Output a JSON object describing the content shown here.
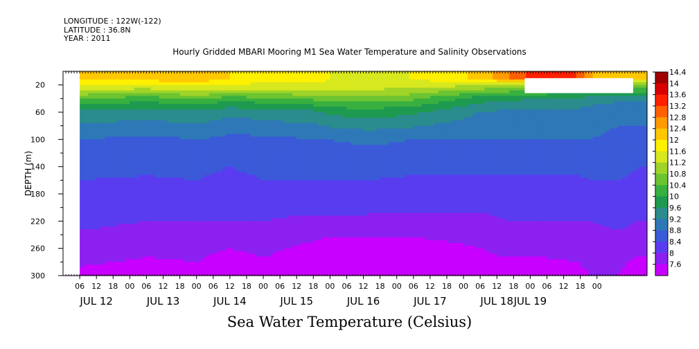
{
  "header": {
    "longitude": "LONGITUDE : 122W(-122)",
    "latitude": "LATITUDE : 36.8N",
    "year": "YEAR : 2011"
  },
  "chart_data": {
    "type": "heatmap",
    "title": "Hourly Gridded MBARI Mooring M1 Sea Water Temperature and Salinity Observations",
    "bottom_title": "Sea Water Temperature (Celsius)",
    "ylabel": "DEPTH (m)",
    "xlabel": "",
    "ylim": [
      300,
      0
    ],
    "y_ticks": [
      20,
      60,
      100,
      140,
      180,
      220,
      260,
      300
    ],
    "x_hour_ticks": [
      "06",
      "12",
      "18",
      "00",
      "06",
      "12",
      "18",
      "00",
      "06",
      "12",
      "18",
      "00",
      "06",
      "12",
      "18",
      "00",
      "06",
      "12",
      "18",
      "00",
      "06",
      "12",
      "18",
      "00",
      "06",
      "12",
      "18",
      "00",
      "06",
      "12",
      "18",
      "00"
    ],
    "x_day_labels": [
      "JUL 12",
      "JUL 13",
      "JUL 14",
      "JUL 15",
      "JUL 16",
      "JUL 17",
      "JUL 18",
      "JUL 19"
    ],
    "colorbar": {
      "levels": [
        "14.4",
        "14",
        "13.6",
        "13.2",
        "12.8",
        "12.4",
        "12",
        "11.6",
        "11.2",
        "10.8",
        "10.4",
        "10",
        "9.6",
        "9.2",
        "8.8",
        "8.4",
        "8",
        "7.6"
      ],
      "min": 7.6,
      "max": 14.4
    },
    "times_hours_since_jul12_00": [
      7,
      30,
      48,
      60,
      72,
      90,
      96,
      110,
      125,
      150,
      160,
      172,
      185,
      190,
      200,
      207
    ],
    "depths_m": [
      10,
      20,
      30,
      40,
      60,
      100,
      140,
      180,
      220,
      260,
      300
    ],
    "temperature_profiles_c": [
      [
        12.4,
        12.0,
        11.5,
        10.8,
        9.9,
        9.2,
        8.9,
        8.7,
        8.5,
        8.2,
        7.9
      ],
      [
        12.6,
        12.0,
        11.3,
        10.6,
        9.8,
        9.1,
        8.9,
        8.6,
        8.4,
        8.1,
        7.8
      ],
      [
        12.8,
        12.1,
        11.6,
        10.8,
        9.9,
        9.2,
        8.9,
        8.7,
        8.4,
        8.1,
        7.9
      ],
      [
        12.4,
        12.0,
        11.4,
        10.6,
        9.7,
        9.1,
        8.8,
        8.6,
        8.4,
        8.0,
        7.7
      ],
      [
        12.2,
        11.9,
        11.4,
        10.7,
        9.8,
        9.1,
        8.9,
        8.7,
        8.4,
        8.1,
        7.8
      ],
      [
        12.2,
        11.9,
        11.5,
        10.9,
        9.9,
        9.2,
        8.9,
        8.7,
        8.3,
        7.9,
        7.6
      ],
      [
        12.0,
        11.9,
        11.6,
        11.0,
        10.1,
        9.2,
        8.9,
        8.7,
        8.3,
        7.8,
        7.6
      ],
      [
        11.9,
        11.8,
        11.5,
        11.0,
        10.2,
        9.3,
        8.9,
        8.7,
        8.3,
        7.8,
        7.6
      ],
      [
        12.0,
        11.8,
        11.4,
        10.9,
        10.1,
        9.2,
        8.9,
        8.6,
        8.3,
        7.8,
        7.6
      ],
      [
        12.5,
        11.7,
        10.9,
        10.2,
        9.6,
        9.2,
        8.9,
        8.6,
        8.3,
        8.0,
        7.8
      ],
      [
        13.2,
        11.6,
        10.8,
        10.1,
        9.5,
        9.2,
        8.9,
        8.6,
        8.4,
        8.1,
        7.8
      ],
      [
        14.0,
        11.5,
        10.7,
        10.0,
        9.5,
        9.2,
        8.9,
        8.6,
        8.4,
        8.1,
        7.8
      ],
      [
        13.6,
        11.4,
        10.6,
        9.9,
        9.5,
        9.2,
        8.9,
        8.6,
        8.4,
        8.1,
        7.9
      ],
      [
        12.8,
        11.5,
        10.6,
        9.8,
        9.4,
        9.2,
        8.9,
        8.7,
        8.4,
        8.2,
        8.0
      ],
      [
        12.4,
        11.4,
        10.5,
        9.7,
        9.3,
        9.1,
        8.9,
        8.7,
        8.5,
        8.2,
        8.0
      ],
      [
        12.4,
        11.3,
        10.4,
        9.7,
        9.3,
        9.1,
        8.8,
        8.6,
        8.4,
        8.1,
        7.7
      ]
    ],
    "no_data_regions": [
      {
        "time_from": 0,
        "time_to": 6,
        "depth_from": 0,
        "depth_to": 300
      },
      {
        "time_from": 166,
        "time_to": 205,
        "depth_from": 10,
        "depth_to": 32
      }
    ],
    "grid": false
  }
}
